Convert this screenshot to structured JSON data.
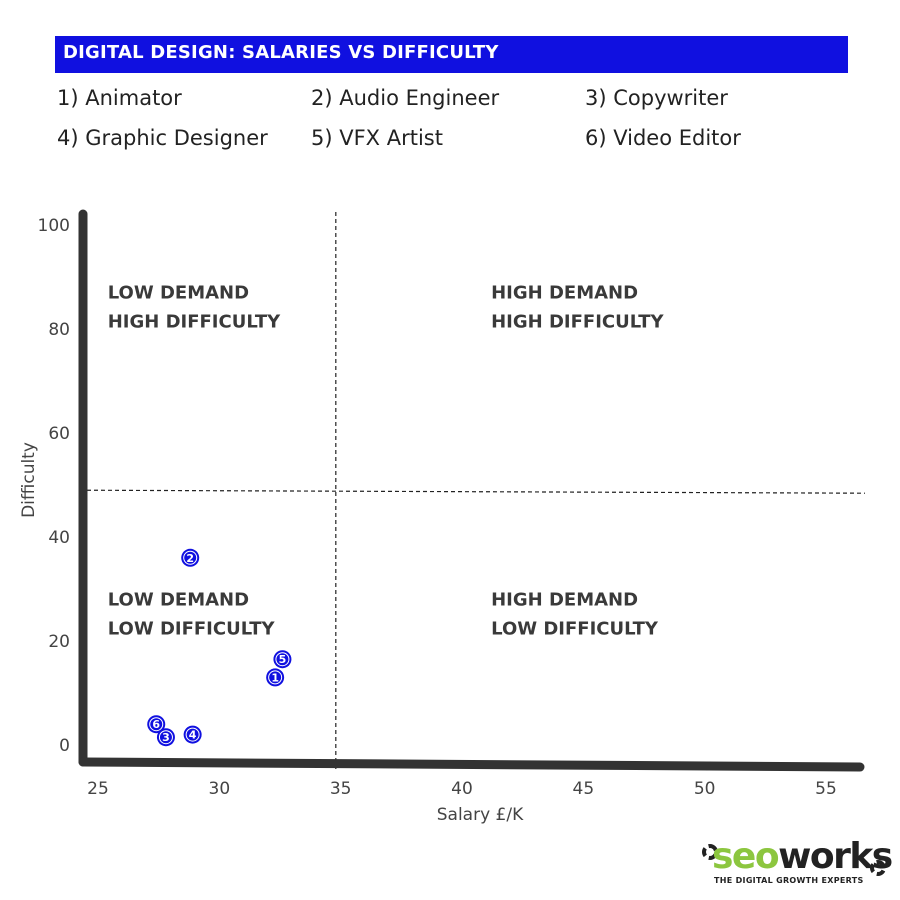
{
  "title": "DIGITAL DESIGN: SALARIES VS DIFFICULTY",
  "legend": [
    "1) Animator",
    "2) Audio Engineer",
    "3) Copywriter",
    "4)  Graphic Designer",
    "5) VFX Artist",
    "6) Video Editor"
  ],
  "logo": {
    "seo": "seo",
    "works": "works",
    "tagline": "THE DIGITAL GROWTH EXPERTS"
  },
  "colors": {
    "title_bar": "#1010e0",
    "point": "#1010e0",
    "axis": "#333333",
    "logo_green": "#8cc63f"
  },
  "chart_data": {
    "type": "scatter",
    "title": "DIGITAL DESIGN: SALARIES VS DIFFICULTY",
    "xlabel": "Salary £/K",
    "ylabel": "Difficulty",
    "xlim": [
      24.5,
      56
    ],
    "ylim": [
      -4,
      102
    ],
    "x_ticks": [
      25,
      30,
      35,
      40,
      45,
      50,
      55
    ],
    "y_ticks": [
      0,
      20,
      40,
      60,
      80,
      100
    ],
    "grid": false,
    "quadrant_dividers": {
      "x": 34.8,
      "y": 49
    },
    "quadrant_labels": [
      {
        "lines": [
          "LOW DEMAND",
          "HIGH DIFFICULTY"
        ],
        "x": 25.4,
        "y": 87
      },
      {
        "lines": [
          "HIGH DEMAND",
          "HIGH DIFFICULTY"
        ],
        "x": 41.2,
        "y": 87
      },
      {
        "lines": [
          "LOW DEMAND",
          "LOW DIFFICULTY"
        ],
        "x": 25.4,
        "y": 28
      },
      {
        "lines": [
          "HIGH DEMAND",
          "LOW DIFFICULTY"
        ],
        "x": 41.2,
        "y": 28
      }
    ],
    "points": [
      {
        "label": "1",
        "x": 32.3,
        "y": 13
      },
      {
        "label": "2",
        "x": 28.8,
        "y": 36
      },
      {
        "label": "3",
        "x": 27.8,
        "y": 1.5
      },
      {
        "label": "4",
        "x": 28.9,
        "y": 2
      },
      {
        "label": "5",
        "x": 32.6,
        "y": 16.5
      },
      {
        "label": "6",
        "x": 27.4,
        "y": 4
      }
    ]
  }
}
